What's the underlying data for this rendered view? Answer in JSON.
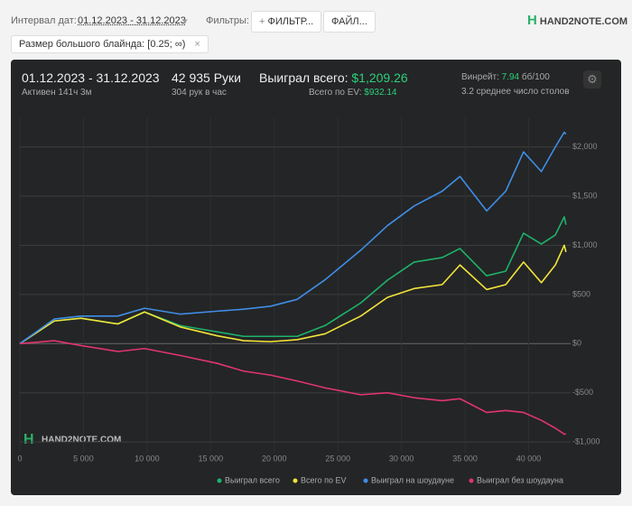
{
  "toolbar": {
    "date_label": "Интервал дат:",
    "date_range": "01.12.2023 - 31.12.2023",
    "filters_label": "Фильтры:",
    "filter_button": "ФИЛЬТР...",
    "file_button": "ФАЙЛ...",
    "logo": "HAND2NOTE.COM"
  },
  "filter_chip": "Размер большого блайнда: [0.25; ∞)",
  "summary": {
    "period": "01.12.2023 - 31.12.2023",
    "active": "Активен 141ч 3м",
    "hands": "42 935 Руки",
    "hands_per_hour": "304 рук в час",
    "won_label": "Выиграл всего:",
    "won_value": "$1,209.26",
    "ev_label": "Всего по EV:",
    "ev_value": "$932.14",
    "winrate_label": "Винрейт:",
    "winrate_value": "7.94",
    "winrate_unit": "бб/100",
    "tables": "3.2 среднее число столов"
  },
  "chart_data": {
    "type": "line",
    "watermark": "HAND2NOTE.COM",
    "x": [
      0,
      2700,
      4800,
      7700,
      9800,
      12600,
      15500,
      17600,
      19700,
      21800,
      24000,
      26800,
      28900,
      31000,
      33200,
      34600,
      36700,
      38200,
      39600,
      41000,
      42100,
      42800,
      42935
    ],
    "series": [
      {
        "name": "Выиграл всего",
        "color": "#1db36a",
        "values": [
          0,
          230,
          258,
          200,
          322,
          184,
          120,
          74,
          74,
          74,
          184,
          414,
          645,
          829,
          875,
          967,
          690,
          737,
          1123,
          1013,
          1105,
          1289,
          1209
        ]
      },
      {
        "name": "Всего по EV",
        "color": "#f2e43a",
        "values": [
          0,
          230,
          258,
          200,
          322,
          170,
          80,
          30,
          20,
          40,
          100,
          280,
          470,
          560,
          600,
          800,
          550,
          600,
          830,
          620,
          800,
          1000,
          932
        ]
      },
      {
        "name": "Выиграл на шоудауне",
        "color": "#3f8ee6",
        "values": [
          0,
          250,
          280,
          280,
          360,
          300,
          330,
          350,
          380,
          450,
          650,
          950,
          1200,
          1400,
          1550,
          1700,
          1350,
          1550,
          1950,
          1750,
          2000,
          2150,
          2130
        ]
      },
      {
        "name": "Выиграл без шоудауна",
        "color": "#e0356f",
        "values": [
          0,
          30,
          -20,
          -80,
          -50,
          -120,
          -200,
          -280,
          -320,
          -380,
          -450,
          -520,
          -500,
          -550,
          -580,
          -560,
          -700,
          -680,
          -700,
          -780,
          -860,
          -920,
          -920
        ]
      }
    ],
    "xlim": [
      0,
      43300
    ],
    "ylim": [
      -1100,
      2300
    ],
    "xticks": [
      0,
      {
        "value": 5000,
        "label": "5 000"
      },
      {
        "value": 10000,
        "label": "10 000"
      },
      {
        "value": 15000,
        "label": "15 000"
      },
      {
        "value": 20000,
        "label": "20 000"
      },
      {
        "value": 25000,
        "label": "25 000"
      },
      {
        "value": 30000,
        "label": "30 000"
      },
      {
        "value": 35000,
        "label": "35 000"
      },
      {
        "value": 40000,
        "label": "40 000"
      }
    ],
    "yticks": [
      {
        "value": -1000,
        "label": "-$1,000"
      },
      {
        "value": -500,
        "label": "-$500"
      },
      {
        "value": 0,
        "label": "$0"
      },
      {
        "value": 500,
        "label": "$500"
      },
      {
        "value": 1000,
        "label": "$1,000"
      },
      {
        "value": 1500,
        "label": "$1,500"
      },
      {
        "value": 2000,
        "label": "$2,000"
      }
    ],
    "grid": true
  }
}
